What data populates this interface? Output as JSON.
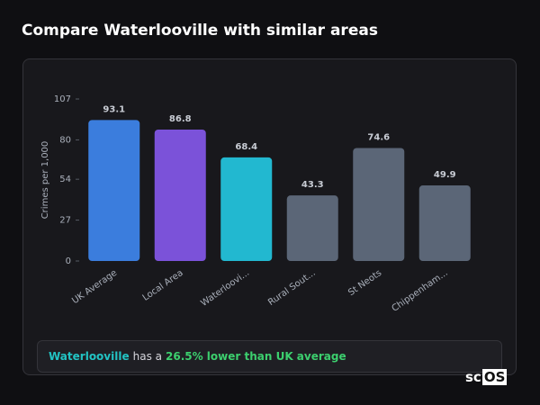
{
  "page_title": "Compare Waterlooville with similar areas",
  "chart_data": {
    "type": "bar",
    "y_label": "Crimes per 1,000",
    "categories": [
      "UK Average",
      "Local Area",
      "Waterloovi...",
      "Rural Sout...",
      "St Neots",
      "Chippenham..."
    ],
    "values": [
      93.1,
      86.8,
      68.4,
      43.3,
      74.6,
      49.9
    ],
    "colors": [
      "#3b7ddd",
      "#7b52d9",
      "#22b8d0",
      "#5b6677",
      "#5b6677",
      "#5b6677"
    ],
    "ylim": [
      0,
      107
    ],
    "yticks": [
      0,
      27,
      54,
      80,
      107
    ]
  },
  "summary": {
    "area": "Waterlooville",
    "text": "has a",
    "highlight": "26.5% lower than UK average"
  },
  "logo": {
    "prefix": "sc",
    "boxed": "OS"
  }
}
